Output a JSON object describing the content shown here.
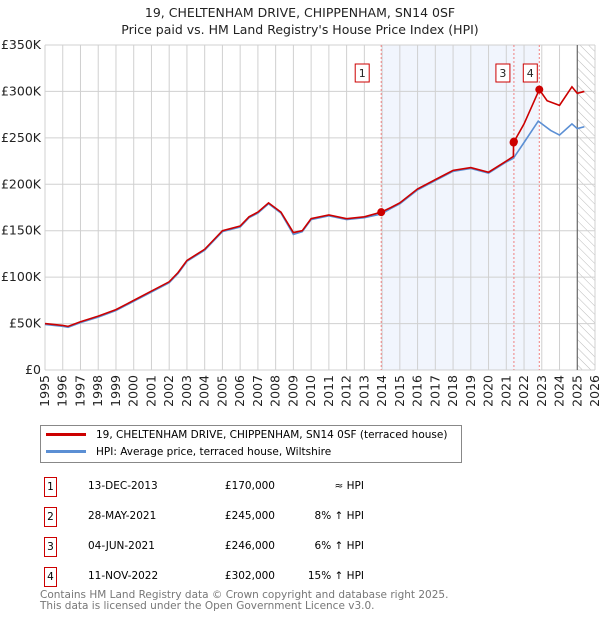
{
  "chart_data": {
    "type": "line",
    "title": "19, CHELTENHAM DRIVE, CHIPPENHAM, SN14 0SF",
    "subtitle": "Price paid vs. HM Land Registry's House Price Index (HPI)",
    "xlim": [
      1995,
      2026
    ],
    "ylim": [
      0,
      350000
    ],
    "x_ticks": [
      "1995",
      "1996",
      "1997",
      "1998",
      "1999",
      "2000",
      "2001",
      "2002",
      "2003",
      "2004",
      "2005",
      "2006",
      "2007",
      "2008",
      "2009",
      "2010",
      "2011",
      "2012",
      "2013",
      "2014",
      "2015",
      "2016",
      "2017",
      "2018",
      "2019",
      "2020",
      "2021",
      "2022",
      "2023",
      "2024",
      "2025",
      "2026"
    ],
    "y_ticks": [
      {
        "v": 0,
        "label": "£0"
      },
      {
        "v": 50000,
        "label": "£50K"
      },
      {
        "v": 100000,
        "label": "£100K"
      },
      {
        "v": 150000,
        "label": "£150K"
      },
      {
        "v": 200000,
        "label": "£200K"
      },
      {
        "v": 250000,
        "label": "£250K"
      },
      {
        "v": 300000,
        "label": "£300K"
      },
      {
        "v": 350000,
        "label": "£350K"
      }
    ],
    "grid": true,
    "series": [
      {
        "name": "19, CHELTENHAM DRIVE, CHIPPENHAM, SN14 0SF (terraced house)",
        "color": "#cc0000",
        "x": [
          1995,
          1996,
          1996.3,
          1997,
          1998,
          1999,
          2000,
          2001,
          2002,
          2002.5,
          2003,
          2004,
          2004.5,
          2005,
          2006,
          2006.5,
          2007,
          2007.6,
          2008.3,
          2009,
          2009.5,
          2010,
          2011,
          2012,
          2013,
          2013.95,
          2014.5,
          2015,
          2016,
          2017,
          2017.5,
          2018,
          2019,
          2020,
          2021,
          2021.4,
          2021.41,
          2022,
          2022.86,
          2023.3,
          2024,
          2024.7,
          2025,
          2025.4
        ],
        "y": [
          50000,
          48000,
          47000,
          52000,
          58000,
          65000,
          75000,
          85000,
          95000,
          105000,
          118000,
          130000,
          140000,
          150000,
          155000,
          165000,
          170000,
          180000,
          170000,
          148000,
          150000,
          163000,
          167000,
          163000,
          165000,
          170000,
          175000,
          180000,
          195000,
          205000,
          210000,
          215000,
          218000,
          213000,
          225000,
          230000,
          245000,
          265000,
          302000,
          290000,
          285000,
          305000,
          298000,
          300000
        ]
      },
      {
        "name": "HPI: Average price, terraced house, Wiltshire",
        "color": "#5b8fd4",
        "x": [
          1995,
          1996,
          1996.3,
          1997,
          1998,
          1999,
          2000,
          2001,
          2002,
          2002.5,
          2003,
          2004,
          2004.5,
          2005,
          2006,
          2006.5,
          2007,
          2007.6,
          2008.3,
          2009,
          2009.5,
          2010,
          2011,
          2012,
          2013,
          2013.95,
          2014.5,
          2015,
          2016,
          2017,
          2017.5,
          2018,
          2019,
          2020,
          2021,
          2021.4,
          2022,
          2022.8,
          2023.5,
          2024,
          2024.7,
          2025,
          2025.4
        ],
        "y": [
          49000,
          47000,
          46000,
          51000,
          57000,
          64000,
          74000,
          84000,
          94000,
          104000,
          117000,
          129000,
          139000,
          149000,
          154000,
          164000,
          169000,
          179000,
          169000,
          146000,
          149000,
          162000,
          166000,
          162000,
          164000,
          168000,
          174000,
          179000,
          194000,
          204000,
          209000,
          214000,
          217000,
          212000,
          224000,
          228000,
          245000,
          268000,
          258000,
          253000,
          265000,
          260000,
          262000
        ]
      }
    ],
    "sales": [
      {
        "n": "1",
        "date": "13-DEC-2013",
        "x": 2013.95,
        "price": 170000,
        "price_label": "£170,000",
        "hpi": "≈ HPI"
      },
      {
        "n": "2",
        "date": "28-MAY-2021",
        "x": 2021.41,
        "price": 245000,
        "price_label": "£245,000",
        "hpi": "8% ↑ HPI"
      },
      {
        "n": "3",
        "date": "04-JUN-2021",
        "x": 2021.43,
        "price": 246000,
        "price_label": "£246,000",
        "hpi": "6% ↑ HPI"
      },
      {
        "n": "4",
        "date": "11-NOV-2022",
        "x": 2022.86,
        "price": 302000,
        "price_label": "£302,000",
        "hpi": "15% ↑ HPI"
      }
    ],
    "hatched_from": 2025.0,
    "legend_placement": "bottom"
  },
  "footer": {
    "line1": "Contains HM Land Registry data © Crown copyright and database right 2025.",
    "line2": "This data is licensed under the Open Government Licence v3.0."
  }
}
